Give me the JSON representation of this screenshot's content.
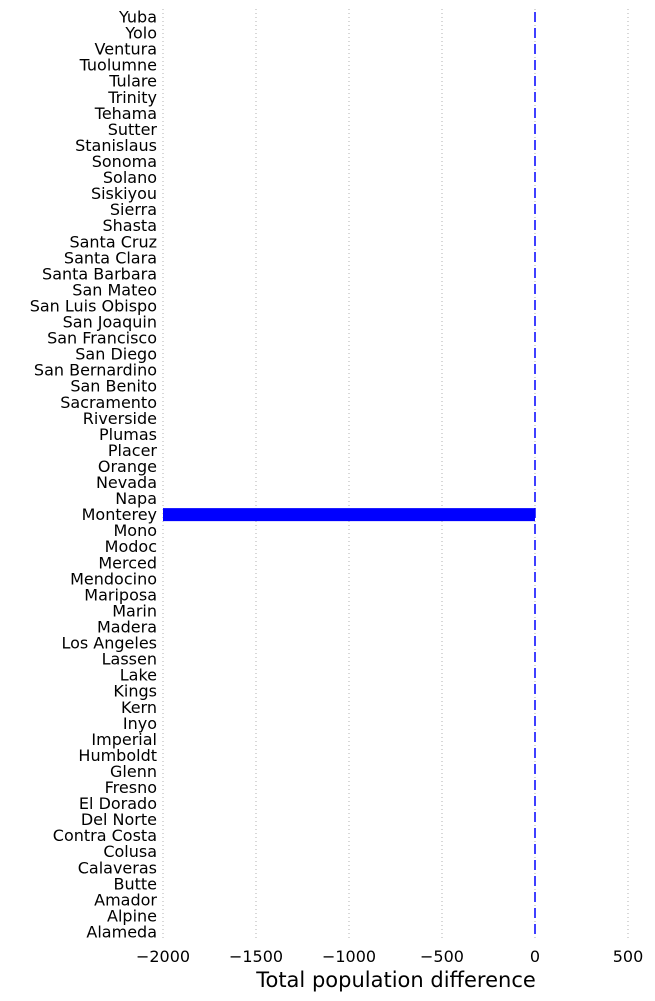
{
  "chart_data": {
    "type": "bar",
    "orientation": "horizontal",
    "xlabel": "Total population difference",
    "ylabel": "",
    "xlim": [
      -2000,
      500
    ],
    "xticks": [
      -2000,
      -1500,
      -1000,
      -500,
      0,
      500
    ],
    "xtick_labels": [
      "−2000",
      "−1500",
      "−1000",
      "−500",
      "0",
      "500"
    ],
    "grid": "x-dotted",
    "bar_color": "#0000ff",
    "zero_line_color": "#0000ff",
    "categories": [
      "Alameda",
      "Alpine",
      "Amador",
      "Butte",
      "Calaveras",
      "Colusa",
      "Contra Costa",
      "Del Norte",
      "El Dorado",
      "Fresno",
      "Glenn",
      "Humboldt",
      "Imperial",
      "Inyo",
      "Kern",
      "Kings",
      "Lake",
      "Lassen",
      "Los Angeles",
      "Madera",
      "Marin",
      "Mariposa",
      "Mendocino",
      "Merced",
      "Modoc",
      "Mono",
      "Monterey",
      "Napa",
      "Nevada",
      "Orange",
      "Placer",
      "Plumas",
      "Riverside",
      "Sacramento",
      "San Benito",
      "San Bernardino",
      "San Diego",
      "San Francisco",
      "San Joaquin",
      "San Luis Obispo",
      "San Mateo",
      "Santa Barbara",
      "Santa Clara",
      "Santa Cruz",
      "Shasta",
      "Sierra",
      "Siskiyou",
      "Solano",
      "Sonoma",
      "Stanislaus",
      "Sutter",
      "Tehama",
      "Trinity",
      "Tulare",
      "Tuolumne",
      "Ventura",
      "Yolo",
      "Yuba"
    ],
    "values": [
      0,
      0,
      0,
      0,
      0,
      0,
      0,
      0,
      0,
      0,
      0,
      0,
      0,
      0,
      0,
      0,
      0,
      0,
      0,
      0,
      0,
      0,
      0,
      0,
      0,
      0,
      -2000,
      0,
      0,
      0,
      0,
      0,
      0,
      0,
      0,
      0,
      0,
      0,
      0,
      0,
      0,
      0,
      0,
      0,
      0,
      0,
      0,
      0,
      0,
      0,
      0,
      0,
      0,
      0,
      0,
      0,
      0,
      0
    ]
  }
}
